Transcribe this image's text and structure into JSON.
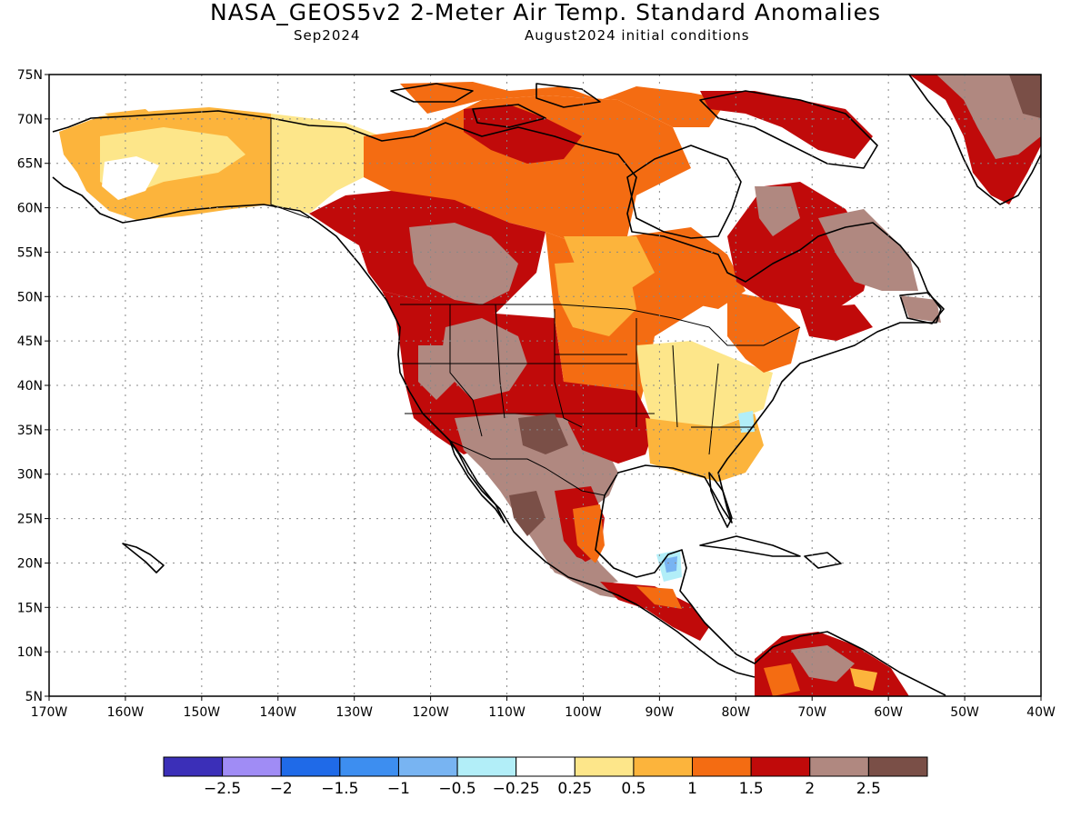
{
  "header": {
    "title": "NASA_GEOS5v2 2-Meter Air Temp. Standard Anomalies",
    "valid_month": "Sep2024",
    "init": "August2024 initial conditions"
  },
  "map": {
    "lon_range": [
      -170,
      -40
    ],
    "lat_range": [
      5,
      75
    ],
    "lat_labels": [
      "75N",
      "70N",
      "65N",
      "60N",
      "55N",
      "50N",
      "45N",
      "40N",
      "35N",
      "30N",
      "25N",
      "20N",
      "15N",
      "10N",
      "5N"
    ],
    "lon_labels": [
      "170W",
      "160W",
      "150W",
      "140W",
      "130W",
      "120W",
      "110W",
      "100W",
      "90W",
      "80W",
      "70W",
      "60W",
      "50W",
      "40W"
    ]
  },
  "colorbar": {
    "colors": [
      "#3b2fb8",
      "#a08cf5",
      "#1f6ae8",
      "#3d8ef0",
      "#78b4f2",
      "#b2eef8",
      "#ffffff",
      "#fde68a",
      "#fcb43c",
      "#f46c12",
      "#c00a0a",
      "#b08880",
      "#7a4f47"
    ],
    "labels": [
      "-2.5",
      "-2",
      "-1.5",
      "-1",
      "-0.5",
      "-0.25",
      "0.25",
      "0.5",
      "1",
      "1.5",
      "2",
      "2.5"
    ]
  },
  "anomaly_regions": [
    {
      "level": "1",
      "color": "#fcb43c",
      "area": "Alaska interior"
    },
    {
      "level": "0.5",
      "color": "#fde68a",
      "area": "Yukon / northern BC"
    },
    {
      "level": "1.5",
      "color": "#f46c12",
      "area": "Northwest Territories / Nunavut"
    },
    {
      "level": "2",
      "color": "#c00a0a",
      "area": "Alberta / Saskatchewan / western US"
    },
    {
      "level": "2.5",
      "color": "#b08880",
      "area": "Interior Northwest / Southwest / Mexico / Quebec-Labrador / Greenland"
    },
    {
      "level": ">2.5",
      "color": "#7a4f47",
      "area": "Greenland / New Mexico / Sierra Madre"
    },
    {
      "level": "0.5",
      "color": "#fde68a",
      "area": "Ohio Valley / Appalachians"
    },
    {
      "level": "-0.25",
      "color": "#b2eef8",
      "area": "North Carolina coast / Yucatan"
    },
    {
      "level": "2",
      "color": "#c00a0a",
      "area": "Southern Plains / Central America"
    }
  ]
}
